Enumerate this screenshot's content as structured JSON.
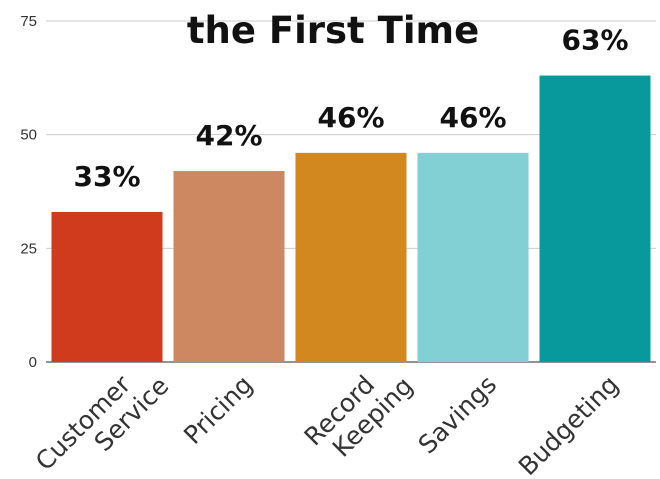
{
  "chart_data": {
    "type": "bar",
    "title": "the First Time",
    "xlabel": "",
    "ylabel": "",
    "ylim": [
      0,
      75
    ],
    "yticks": [
      0,
      25,
      50,
      75
    ],
    "grid": true,
    "categories": [
      [
        "Customer",
        "Service"
      ],
      [
        "Pricing"
      ],
      [
        "Record",
        "Keeping"
      ],
      [
        "Savings"
      ],
      [
        "Budgeting"
      ]
    ],
    "values": [
      33,
      42,
      46,
      46,
      63
    ],
    "data_labels": [
      "33%",
      "42%",
      "46%",
      "46%",
      "63%"
    ],
    "colors": [
      "#d03b1e",
      "#cd8862",
      "#d3871f",
      "#82cfd4",
      "#08999c"
    ]
  }
}
